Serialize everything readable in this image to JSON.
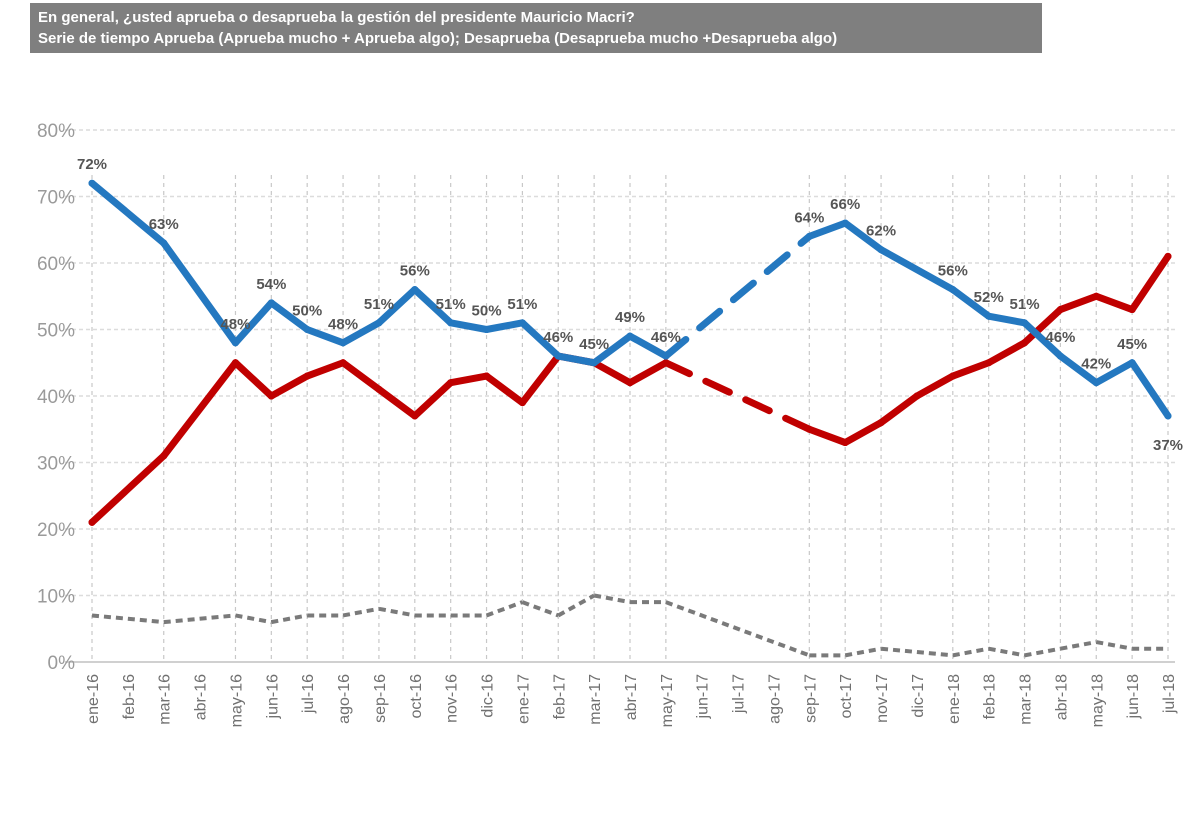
{
  "title": {
    "line1": "En general, ¿usted aprueba o desaprueba la gestión del presidente Mauricio Macri?",
    "line2": "Serie de tiempo Aprueba (Aprueba mucho + Aprueba algo); Desaprueba (Desaprueba mucho +Desaprueba algo)"
  },
  "chart_data": {
    "type": "line",
    "ylim": [
      0,
      80
    ],
    "yticks": [
      "0%",
      "10%",
      "20%",
      "30%",
      "40%",
      "50%",
      "60%",
      "70%",
      "80%"
    ],
    "grid": "horizontal dashed; vertical dashed at surveyed months",
    "categories": [
      "ene-16",
      "feb-16",
      "mar-16",
      "abr-16",
      "may-16",
      "jun-16",
      "jul-16",
      "ago-16",
      "sep-16",
      "oct-16",
      "nov-16",
      "dic-16",
      "ene-17",
      "feb-17",
      "mar-17",
      "abr-17",
      "may-17",
      "jun-17",
      "jul-17",
      "ago-17",
      "sep-17",
      "oct-17",
      "nov-17",
      "dic-17",
      "ene-18",
      "feb-18",
      "mar-18",
      "abr-18",
      "may-18",
      "jun-18",
      "jul-18"
    ],
    "dashed_gap": [
      "may-17",
      "sep-17"
    ],
    "series": [
      {
        "color": "#2478c0",
        "style": "solid",
        "labeled": true,
        "values": [
          72,
          null,
          63,
          null,
          48,
          54,
          50,
          48,
          51,
          56,
          51,
          50,
          51,
          46,
          45,
          49,
          46,
          null,
          null,
          null,
          64,
          66,
          62,
          null,
          56,
          52,
          51,
          46,
          42,
          45,
          37
        ]
      },
      {
        "color": "#c00000",
        "style": "solid",
        "labeled": false,
        "values": [
          21,
          null,
          31,
          null,
          45,
          40,
          43,
          45,
          41,
          37,
          42,
          43,
          39,
          46,
          45,
          42,
          45,
          null,
          null,
          null,
          35,
          33,
          36,
          40,
          43,
          45,
          48,
          53,
          55,
          53,
          61
        ]
      },
      {
        "color": "#7a7a7a",
        "style": "dashed",
        "labeled": false,
        "values": [
          7,
          null,
          6,
          null,
          7,
          6,
          7,
          7,
          8,
          7,
          7,
          7,
          9,
          7,
          10,
          9,
          9,
          null,
          null,
          null,
          1,
          1,
          2,
          null,
          1,
          2,
          1,
          2,
          3,
          2,
          2
        ]
      }
    ]
  }
}
